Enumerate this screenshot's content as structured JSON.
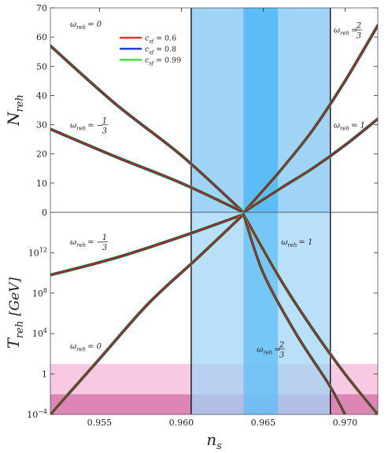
{
  "colors": {
    "red": "#e8322a",
    "blue": "#1f3fd6",
    "green": "#3fe23f",
    "curve_outline": "#4a0a0a",
    "band_outer": "#9fd4f7",
    "band_inner": "#5bbcf7",
    "pink_light": "#f9c9e3",
    "pink_dark": "#dd86b6"
  },
  "chart_data": [
    {
      "panel": "top",
      "type": "line",
      "ylabel_main": "N",
      "ylabel_sub": "reh",
      "xlim": [
        0.952,
        0.972
      ],
      "ylim": [
        0,
        70
      ],
      "yticks": [
        0,
        10,
        20,
        30,
        40,
        50,
        60,
        70
      ],
      "ytick_labels": [
        "0",
        "10",
        "20",
        "30",
        "40",
        "50",
        "60",
        "70"
      ],
      "vertical_lines": [
        0.9606,
        0.9691
      ],
      "bands": [
        {
          "from": 0.9606,
          "to": 0.9691,
          "tone": "outer"
        },
        {
          "from": 0.9638,
          "to": 0.9659,
          "tone": "inner"
        }
      ],
      "legend": {
        "placement": "top-center",
        "entries": [
          {
            "label": "c",
            "sub": "sf",
            "value": "= 0.6",
            "color_key": "red"
          },
          {
            "label": "c",
            "sub": "sf",
            "value": "= 0.8",
            "color_key": "blue"
          },
          {
            "label": "c",
            "sub": "sf",
            "value": "= 0.99",
            "color_key": "green"
          }
        ]
      },
      "curves": [
        {
          "omega": "0",
          "x": [
            0.952,
            0.956,
            0.96,
            0.9638
          ],
          "y": [
            57,
            37,
            19.5,
            0
          ]
        },
        {
          "omega": "-1/3",
          "x": [
            0.952,
            0.956,
            0.96,
            0.9638
          ],
          "y": [
            28.5,
            19,
            10,
            0
          ]
        },
        {
          "omega": "2/3",
          "x": [
            0.9638,
            0.966,
            0.968,
            0.97,
            0.972
          ],
          "y": [
            0,
            14,
            28,
            45,
            64
          ]
        },
        {
          "omega": "1",
          "x": [
            0.9638,
            0.966,
            0.968,
            0.97,
            0.972
          ],
          "y": [
            0,
            8,
            15,
            23,
            32
          ]
        }
      ],
      "annotations": [
        {
          "main": "ω",
          "sub": "reh",
          "rest": "= 0",
          "x": 0.9532,
          "y": 63.5
        },
        {
          "main": "ω",
          "sub": "reh",
          "rest": "= −",
          "frac": [
            "1",
            "3"
          ],
          "x": 0.9532,
          "y": 29
        },
        {
          "main": "ω",
          "sub": "reh",
          "rest": "=",
          "frac": [
            "2",
            "3"
          ],
          "x": 0.9693,
          "y": 61.5
        },
        {
          "main": "ω",
          "sub": "reh",
          "rest": "= 1",
          "x": 0.9693,
          "y": 29
        }
      ]
    },
    {
      "panel": "bottom",
      "type": "line",
      "xlabel_main": "n",
      "xlabel_sub": "s",
      "ylabel": "T",
      "ylabel_sub": "reh",
      "ylabel_unit": "[GeV]",
      "xlim": [
        0.952,
        0.972
      ],
      "xticks": [
        0.955,
        0.96,
        0.965,
        0.97
      ],
      "xtick_labels": [
        "0.955",
        "0.960",
        "0.965",
        "0.970"
      ],
      "ylim_log10": [
        -4,
        16
      ],
      "yscale": "log",
      "yticks_log10": [
        -4,
        0,
        4,
        8,
        12
      ],
      "ytick_labels": [
        {
          "base": "10",
          "exp": "−4"
        },
        {
          "base": "1",
          "exp": ""
        },
        {
          "base": "10",
          "exp": "4"
        },
        {
          "base": "10",
          "exp": "8"
        },
        {
          "base": "10",
          "exp": "12"
        }
      ],
      "vertical_lines": [
        0.9606,
        0.9691
      ],
      "bands": [
        {
          "from": 0.9606,
          "to": 0.9691,
          "tone": "outer"
        },
        {
          "from": 0.9638,
          "to": 0.9659,
          "tone": "inner"
        }
      ],
      "horizontal_bands_log10": [
        {
          "from": -2,
          "to": 1,
          "tone": "pink_light"
        },
        {
          "from": -4,
          "to": -2,
          "tone": "pink_dark"
        }
      ],
      "curves": [
        {
          "omega": "-1/3",
          "x": [
            0.952,
            0.956,
            0.96,
            0.9638
          ],
          "y_log10": [
            9.8,
            11.5,
            13.6,
            15.8
          ]
        },
        {
          "omega": "0",
          "x": [
            0.952,
            0.955,
            0.958,
            0.961,
            0.9638
          ],
          "y_log10": [
            -4,
            1.5,
            7,
            11.5,
            15.8
          ]
        },
        {
          "omega": "1",
          "x": [
            0.9638,
            0.966,
            0.968,
            0.97,
            0.972
          ],
          "y_log10": [
            15.8,
            9.5,
            4.5,
            0,
            -4
          ]
        },
        {
          "omega": "2/3",
          "x": [
            0.9638,
            0.965,
            0.967,
            0.969,
            0.97
          ],
          "y_log10": [
            15.8,
            10,
            4,
            -1,
            -4
          ]
        }
      ],
      "annotations": [
        {
          "main": "ω",
          "sub": "reh",
          "rest": "= −",
          "frac": [
            "1",
            "3"
          ],
          "x": 0.9532,
          "y_log10": 12.8
        },
        {
          "main": "ω",
          "sub": "reh",
          "rest": "= 1",
          "x": 0.9661,
          "y_log10": 12.8
        },
        {
          "main": "ω",
          "sub": "reh",
          "rest": "= 0",
          "x": 0.9532,
          "y_log10": 2.5
        },
        {
          "main": "ω",
          "sub": "reh",
          "rest": "=",
          "frac": [
            "2",
            "3"
          ],
          "x": 0.9646,
          "y_log10": 2.2
        }
      ]
    }
  ]
}
